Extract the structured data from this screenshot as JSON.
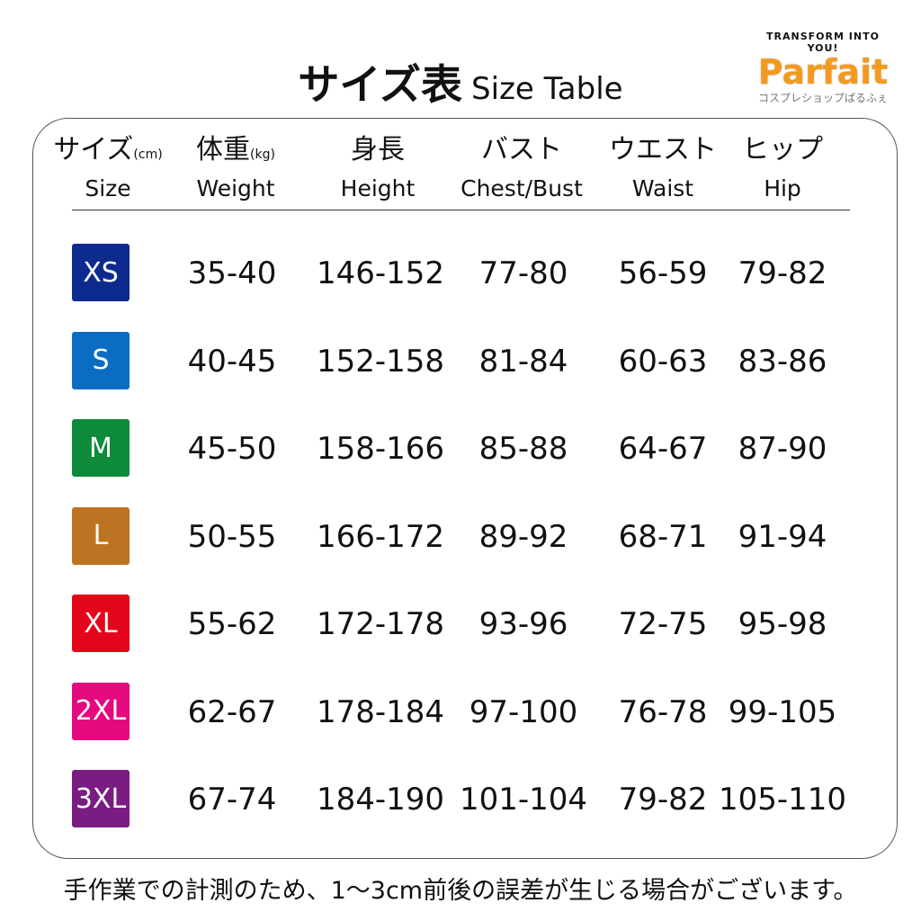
{
  "title": {
    "jp": "サイズ表",
    "en": "Size Table"
  },
  "logo": {
    "tagline": "TRANSFORM INTO YOU!",
    "brand": "Parfait",
    "sub": "コスプレショップぱるふぇ"
  },
  "headers": [
    {
      "jp": "サイズ",
      "unit": "(cm)",
      "en": "Size"
    },
    {
      "jp": "体重",
      "unit": "(kg)",
      "en": "Weight"
    },
    {
      "jp": "身長",
      "unit": "",
      "en": "Height"
    },
    {
      "jp": "バスト",
      "unit": "",
      "en": "Chest/Bust"
    },
    {
      "jp": "ウエスト",
      "unit": "",
      "en": "Waist"
    },
    {
      "jp": "ヒップ",
      "unit": "",
      "en": "Hip"
    }
  ],
  "rows": [
    {
      "size": "XS",
      "color": "#0d2a8f",
      "cells": [
        "35-40",
        "146-152",
        "77-80",
        "56-59",
        "79-82"
      ]
    },
    {
      "size": "S",
      "color": "#0b6cc4",
      "cells": [
        "40-45",
        "152-158",
        "81-84",
        "60-63",
        "83-86"
      ]
    },
    {
      "size": "M",
      "color": "#0d8a3a",
      "cells": [
        "45-50",
        "158-166",
        "85-88",
        "64-67",
        "87-90"
      ]
    },
    {
      "size": "L",
      "color": "#bd7422",
      "cells": [
        "50-55",
        "166-172",
        "89-92",
        "68-71",
        "91-94"
      ]
    },
    {
      "size": "XL",
      "color": "#e3061b",
      "cells": [
        "55-62",
        "172-178",
        "93-96",
        "72-75",
        "95-98"
      ]
    },
    {
      "size": "2XL",
      "color": "#e4097e",
      "cells": [
        "62-67",
        "178-184",
        "97-100",
        "76-78",
        "99-105"
      ]
    },
    {
      "size": "3XL",
      "color": "#7b1c82",
      "cells": [
        "67-74",
        "184-190",
        "101-104",
        "79-82",
        "105-110"
      ]
    }
  ],
  "note": "手作業での計測のため、1〜3cm前後の誤差が生じる場合がございます。"
}
